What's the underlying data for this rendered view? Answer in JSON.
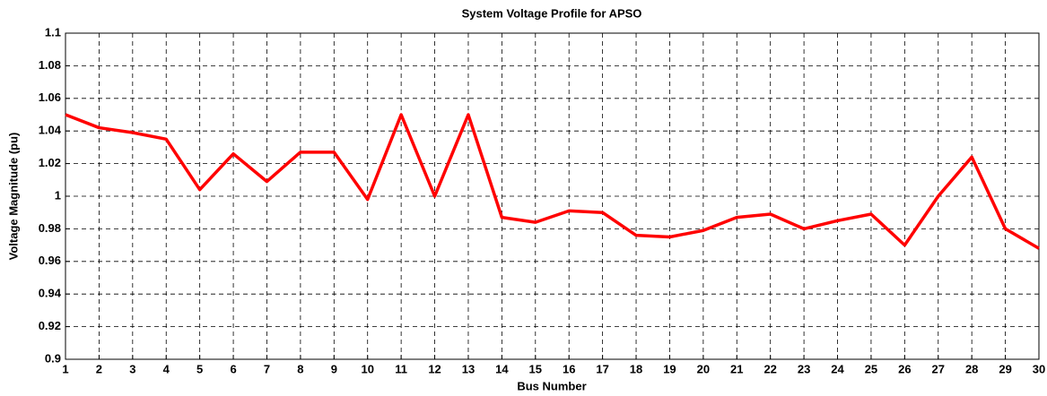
{
  "chart_data": {
    "type": "line",
    "title": "System Voltage Profile for APSO",
    "xlabel": "Bus Number",
    "ylabel": "Voltage Magnitude (pu)",
    "x": [
      1,
      2,
      3,
      4,
      5,
      6,
      7,
      8,
      9,
      10,
      11,
      12,
      13,
      14,
      15,
      16,
      17,
      18,
      19,
      20,
      21,
      22,
      23,
      24,
      25,
      26,
      27,
      28,
      29,
      30
    ],
    "values": [
      1.05,
      1.042,
      1.039,
      1.035,
      1.004,
      1.026,
      1.009,
      1.027,
      1.027,
      0.998,
      1.05,
      1.0,
      1.05,
      0.987,
      0.984,
      0.991,
      0.99,
      0.976,
      0.975,
      0.979,
      0.987,
      0.989,
      0.98,
      0.985,
      0.989,
      0.97,
      1.0,
      1.024,
      0.98,
      0.968
    ],
    "color": "#ff0000",
    "xlim": [
      1,
      30
    ],
    "xticks": [
      1,
      2,
      3,
      4,
      5,
      6,
      7,
      8,
      9,
      10,
      11,
      12,
      13,
      14,
      15,
      16,
      17,
      18,
      19,
      20,
      21,
      22,
      23,
      24,
      25,
      26,
      27,
      28,
      29,
      30
    ],
    "ylim": [
      0.9,
      1.1
    ],
    "yticks": [
      0.9,
      0.92,
      0.94,
      0.96,
      0.98,
      1,
      1.02,
      1.04,
      1.06,
      1.08,
      1.1
    ],
    "grid": true
  }
}
